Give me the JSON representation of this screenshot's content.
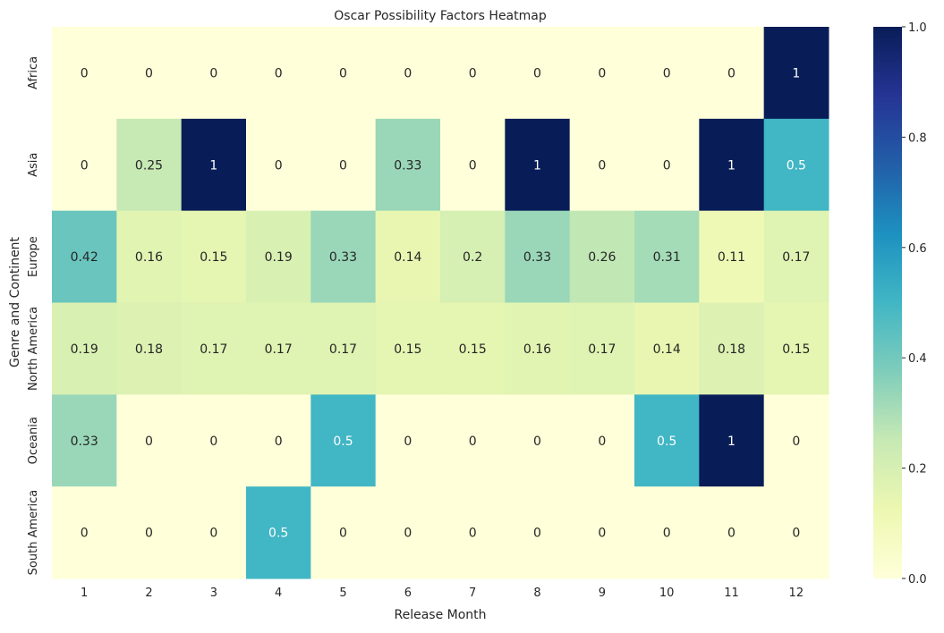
{
  "chart_data": {
    "type": "heatmap",
    "title": "Oscar Possibility Factors Heatmap",
    "xlabel": "Release Month",
    "ylabel": "Genre and Continent",
    "x_categories": [
      "1",
      "2",
      "3",
      "4",
      "5",
      "6",
      "7",
      "8",
      "9",
      "10",
      "11",
      "12"
    ],
    "y_categories": [
      "Africa",
      "Asia",
      "Europe",
      "North America",
      "Oceania",
      "South America"
    ],
    "values": [
      [
        0,
        0,
        0,
        0,
        0,
        0,
        0,
        0,
        0,
        0,
        0,
        1
      ],
      [
        0,
        0.25,
        1,
        0,
        0,
        0.33,
        0,
        1,
        0,
        0,
        1,
        0.5
      ],
      [
        0.42,
        0.16,
        0.15,
        0.19,
        0.33,
        0.14,
        0.2,
        0.33,
        0.26,
        0.31,
        0.11,
        0.17
      ],
      [
        0.19,
        0.18,
        0.17,
        0.17,
        0.17,
        0.15,
        0.15,
        0.16,
        0.17,
        0.14,
        0.18,
        0.15
      ],
      [
        0.33,
        0,
        0,
        0,
        0.5,
        0,
        0,
        0,
        0,
        0.5,
        1,
        0
      ],
      [
        0,
        0,
        0,
        0.5,
        0,
        0,
        0,
        0,
        0,
        0,
        0,
        0
      ]
    ],
    "colormap": "YlGnBu",
    "vmin": 0,
    "vmax": 1,
    "colorbar_ticks": [
      "0.0",
      "0.2",
      "0.4",
      "0.6",
      "0.8",
      "1.0"
    ],
    "annotations": true
  }
}
